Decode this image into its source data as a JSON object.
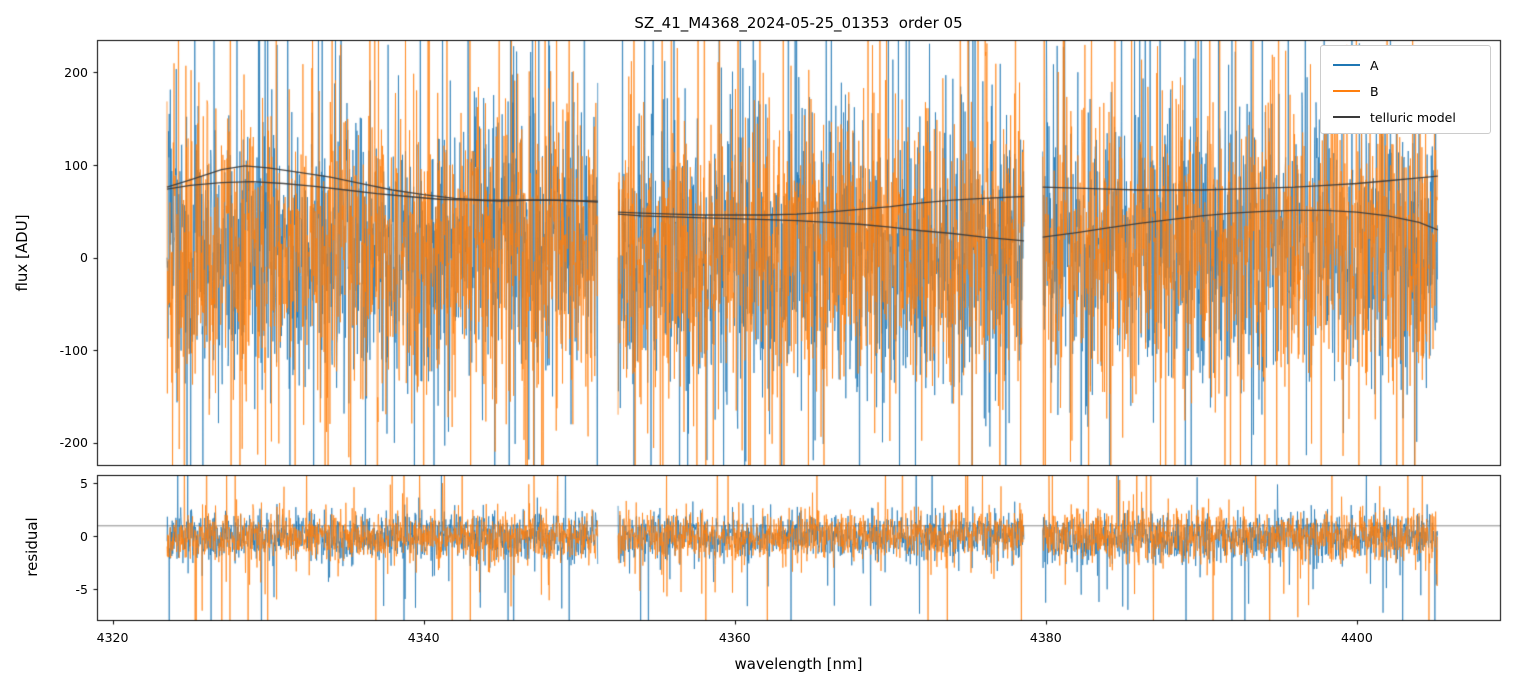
{
  "title": "SZ_41_M4368_2024-05-25_01353  order 05",
  "chart_data": {
    "type": "line",
    "title": "SZ_41_M4368_2024-05-25_01353  order 05",
    "xlabel": "wavelength [nm]",
    "grid": false,
    "legend_position": "upper right",
    "xlim": [
      4319.0,
      4409.2
    ],
    "xticks": [
      {
        "value": 4320,
        "label": "4320"
      },
      {
        "value": 4340,
        "label": "4340"
      },
      {
        "value": 4360,
        "label": "4360"
      },
      {
        "value": 4380,
        "label": "4380"
      },
      {
        "value": 4400,
        "label": "4400"
      }
    ],
    "segments_nm": [
      [
        4323.5,
        4351.2
      ],
      [
        4352.5,
        4378.6
      ],
      [
        4379.8,
        4405.2
      ]
    ],
    "panels": [
      {
        "id": "flux",
        "ylabel": "flux [ADU]",
        "ylim": [
          -224,
          235
        ],
        "yticks": [
          {
            "value": 200,
            "label": "200"
          },
          {
            "value": 100,
            "label": "100"
          },
          {
            "value": 0,
            "label": "0"
          },
          {
            "value": -100,
            "label": "-100"
          },
          {
            "value": -200,
            "label": "-200"
          }
        ]
      },
      {
        "id": "residual",
        "ylabel": "residual",
        "ylim": [
          -7.9,
          5.8
        ],
        "yticks": [
          {
            "value": 5,
            "label": "5"
          },
          {
            "value": 0,
            "label": "0"
          },
          {
            "value": -5,
            "label": "-5"
          }
        ],
        "reference_line": 1
      }
    ],
    "series": [
      {
        "name": "A",
        "color": "#1f77b4",
        "role": "spectrum"
      },
      {
        "name": "B",
        "color": "#ff7f0e",
        "role": "spectrum"
      },
      {
        "name": "telluric model",
        "color": "#3a3a3a",
        "role": "model"
      }
    ],
    "noise": {
      "seed": 1337,
      "flux_mean": 10,
      "flux_std": 78,
      "flux_spike_prob": 0.05,
      "flux_spike_scale": 2.6,
      "flux_points_per_nm": 42,
      "residual_mean": 0,
      "residual_std": 1.15,
      "residual_spike_prob": 0.045,
      "residual_spike_scale": 2.8,
      "residual_points_per_nm": 42
    },
    "telluric_model_curves": [
      {
        "segment": 0,
        "branch": "upper",
        "points": [
          [
            4323.5,
            76
          ],
          [
            4325,
            84
          ],
          [
            4327,
            95
          ],
          [
            4328.5,
            99
          ],
          [
            4330,
            97
          ],
          [
            4332,
            92
          ],
          [
            4334,
            87
          ],
          [
            4336,
            80
          ],
          [
            4338,
            73
          ],
          [
            4340,
            68
          ],
          [
            4342,
            64
          ],
          [
            4344,
            62
          ],
          [
            4346,
            62
          ],
          [
            4348,
            62
          ],
          [
            4350,
            61
          ],
          [
            4351.2,
            60
          ]
        ]
      },
      {
        "segment": 0,
        "branch": "lower",
        "points": [
          [
            4323.5,
            74
          ],
          [
            4325,
            78
          ],
          [
            4327,
            81
          ],
          [
            4329,
            82
          ],
          [
            4331,
            80
          ],
          [
            4333,
            77
          ],
          [
            4335,
            73
          ],
          [
            4337,
            69
          ],
          [
            4339,
            66
          ],
          [
            4341,
            63
          ],
          [
            4343,
            62
          ],
          [
            4345,
            61
          ],
          [
            4347,
            62
          ],
          [
            4349,
            62
          ],
          [
            4351.2,
            61
          ]
        ]
      },
      {
        "segment": 1,
        "branch": "upper",
        "points": [
          [
            4352.5,
            49
          ],
          [
            4354,
            48
          ],
          [
            4356,
            47
          ],
          [
            4358,
            46
          ],
          [
            4360,
            46
          ],
          [
            4362,
            46
          ],
          [
            4364,
            47
          ],
          [
            4366,
            49
          ],
          [
            4368,
            52
          ],
          [
            4370,
            55
          ],
          [
            4372,
            59
          ],
          [
            4374,
            62
          ],
          [
            4376,
            64
          ],
          [
            4378.6,
            66
          ]
        ]
      },
      {
        "segment": 1,
        "branch": "lower",
        "points": [
          [
            4352.5,
            47
          ],
          [
            4354,
            45
          ],
          [
            4356,
            44
          ],
          [
            4358,
            43
          ],
          [
            4360,
            42
          ],
          [
            4362,
            41
          ],
          [
            4364,
            40
          ],
          [
            4366,
            38
          ],
          [
            4368,
            36
          ],
          [
            4370,
            33
          ],
          [
            4372,
            29
          ],
          [
            4374,
            26
          ],
          [
            4376,
            22
          ],
          [
            4378.6,
            18
          ]
        ]
      },
      {
        "segment": 2,
        "branch": "upper",
        "points": [
          [
            4379.8,
            76
          ],
          [
            4382,
            75
          ],
          [
            4384,
            74
          ],
          [
            4386,
            73
          ],
          [
            4388,
            73
          ],
          [
            4390,
            73
          ],
          [
            4392,
            74
          ],
          [
            4394,
            75
          ],
          [
            4396,
            76
          ],
          [
            4398,
            78
          ],
          [
            4400,
            80
          ],
          [
            4402,
            83
          ],
          [
            4404,
            86
          ],
          [
            4405.2,
            88
          ]
        ]
      },
      {
        "segment": 2,
        "branch": "lower",
        "points": [
          [
            4379.8,
            22
          ],
          [
            4382,
            27
          ],
          [
            4384,
            32
          ],
          [
            4386,
            37
          ],
          [
            4388,
            41
          ],
          [
            4390,
            45
          ],
          [
            4392,
            48
          ],
          [
            4394,
            50
          ],
          [
            4396,
            51
          ],
          [
            4398,
            51
          ],
          [
            4400,
            49
          ],
          [
            4402,
            45
          ],
          [
            4404,
            38
          ],
          [
            4405.2,
            30
          ]
        ]
      }
    ],
    "legend": {
      "entries": [
        {
          "label": "A",
          "color": "#1f77b4"
        },
        {
          "label": "B",
          "color": "#ff7f0e"
        },
        {
          "label": "telluric model",
          "color": "#3a3a3a"
        }
      ]
    }
  }
}
